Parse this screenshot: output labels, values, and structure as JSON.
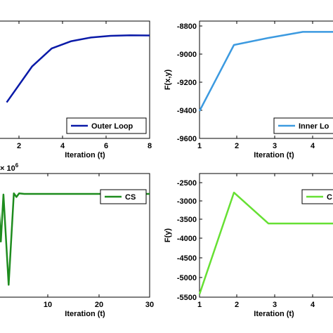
{
  "chart_data": [
    {
      "type": "line",
      "xlabel": "Iteration (t)",
      "ylabel": "",
      "xlim": [
        0,
        8
      ],
      "ylim": [
        -9500,
        -8800
      ],
      "xticks": [
        "2",
        "4",
        "6",
        "8"
      ],
      "yticks": [],
      "grid": false,
      "legend": "bottom-right",
      "series": [
        {
          "name": "Outer Loop",
          "color": "#0a1aa8",
          "x": [
            0.7,
            2,
            3,
            4,
            5,
            6,
            7,
            8
          ],
          "y": [
            -9285,
            -9070,
            -8963,
            -8920,
            -8898,
            -8888,
            -8885,
            -8886
          ]
        }
      ]
    },
    {
      "type": "line",
      "xlabel": "Iteration (t)",
      "ylabel": "F(x,y)",
      "xlim": [
        1,
        5
      ],
      "ylim": [
        -9600,
        -8800
      ],
      "xticks": [
        "1",
        "2",
        "3",
        "4"
      ],
      "yticks": [
        "-9600",
        "-9400",
        "-9200",
        "-9000",
        "-8800"
      ],
      "grid": false,
      "legend": "bottom-right",
      "legend_label": "Inner Lo",
      "series": [
        {
          "name": "Inner Loop",
          "color": "#3c9ae0",
          "x": [
            1,
            2,
            3,
            4,
            5
          ],
          "y": [
            -9405,
            -8935,
            -8885,
            -8842,
            -8842
          ]
        }
      ]
    },
    {
      "type": "line",
      "xlabel": "Iteration (t)",
      "ylabel": "",
      "exponent": "× 10^6",
      "exponent_base": "× 10",
      "exponent_power": "6",
      "xlim": [
        0,
        30
      ],
      "ylim": [
        0,
        1
      ],
      "xticks": [
        "10",
        "20",
        "30"
      ],
      "yticks": [],
      "grid": false,
      "legend": "top-right",
      "series": [
        {
          "name": "CS",
          "color": "#1e8c1e",
          "x": [
            0,
            1,
            1.5,
            2,
            3,
            4,
            4.5,
            5,
            6,
            10,
            15,
            20,
            25,
            30
          ],
          "y": [
            0.83,
            0.83,
            0.45,
            0.83,
            0.1,
            0.84,
            0.81,
            0.84,
            0.835,
            0.835,
            0.835,
            0.835,
            0.835,
            0.835
          ]
        }
      ]
    },
    {
      "type": "line",
      "xlabel": "Iteration (t)",
      "ylabel": "F(y)",
      "xlim": [
        1,
        5
      ],
      "ylim": [
        -5500,
        -2500
      ],
      "xticks": [
        "1",
        "2",
        "3",
        "4"
      ],
      "yticks": [
        "-5500",
        "-5000",
        "-4500",
        "-4000",
        "-3500",
        "-3000",
        "-2500"
      ],
      "grid": false,
      "legend": "top-right",
      "legend_label": "C",
      "series": [
        {
          "name": "C",
          "color": "#66e033",
          "x": [
            1,
            2,
            3,
            4,
            5
          ],
          "y": [
            -5420,
            -2760,
            -3570,
            -3570,
            -3570
          ]
        }
      ]
    }
  ]
}
